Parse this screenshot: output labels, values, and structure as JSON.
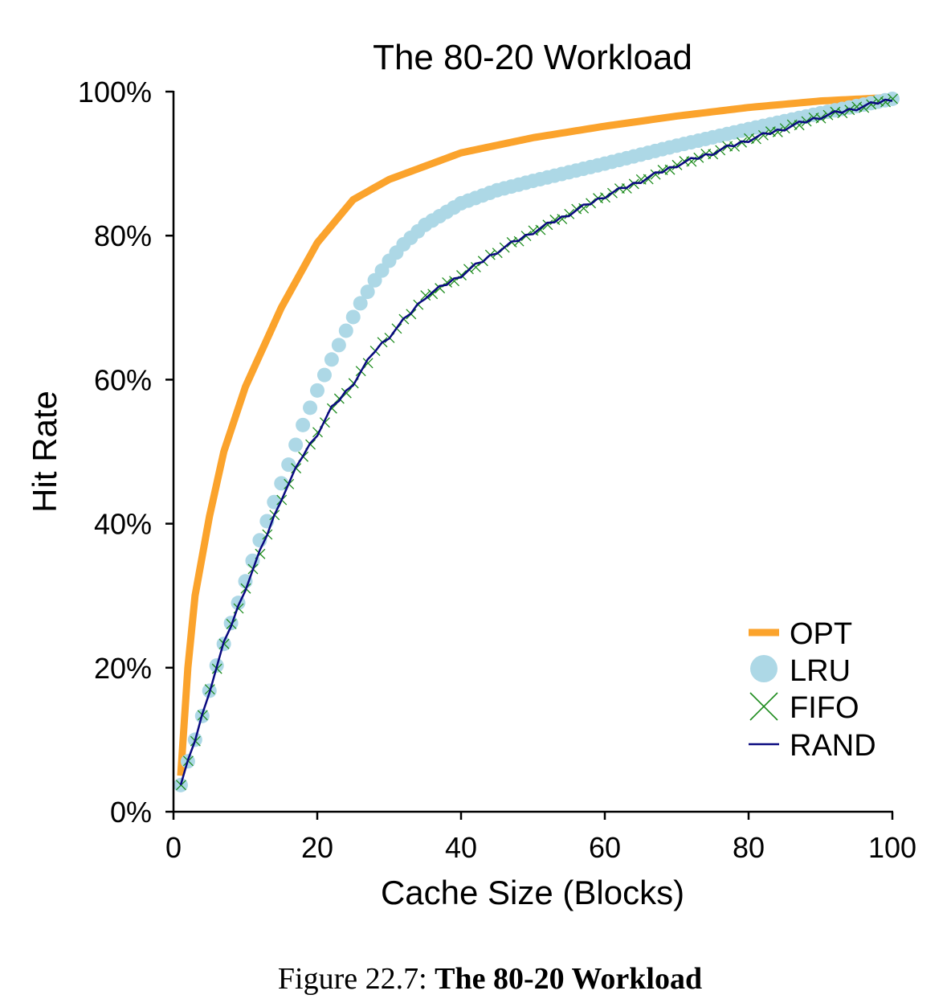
{
  "chart_data": {
    "type": "line",
    "title": "The 80-20 Workload",
    "xlabel": "Cache Size (Blocks)",
    "ylabel": "Hit Rate",
    "xlim": [
      0,
      100
    ],
    "ylim": [
      0,
      100
    ],
    "xticks": [
      0,
      20,
      40,
      60,
      80,
      100
    ],
    "xtick_labels": [
      "0",
      "20",
      "40",
      "60",
      "80",
      "100"
    ],
    "yticks": [
      0,
      20,
      40,
      60,
      80,
      100
    ],
    "ytick_labels": [
      "0%",
      "20%",
      "40%",
      "60%",
      "80%",
      "100%"
    ],
    "grid": false,
    "legend_position": "bottom-right",
    "x_sampling": "integer cache sizes 1-100, interpolated between anchor points",
    "series": [
      {
        "name": "OPT",
        "style": "thick-line",
        "color": "#FBA32C",
        "x": [
          1,
          2,
          3,
          5,
          7,
          10,
          15,
          20,
          25,
          30,
          40,
          50,
          60,
          70,
          80,
          90,
          100
        ],
        "y": [
          5,
          20,
          30,
          41,
          50,
          59,
          70,
          79,
          85,
          87.8,
          91.5,
          93.6,
          95.2,
          96.6,
          97.8,
          98.7,
          99.2
        ]
      },
      {
        "name": "LRU",
        "style": "circle-marker",
        "color": "#ADD8E6",
        "x": [
          1,
          2,
          3,
          4,
          5,
          6,
          7,
          8,
          9,
          10,
          12,
          14,
          16,
          18,
          20,
          22,
          24,
          26,
          28,
          30,
          32,
          35,
          40,
          45,
          50,
          60,
          70,
          80,
          90,
          100
        ],
        "y": [
          3.7,
          7,
          10,
          13.3,
          16.8,
          20.3,
          23.3,
          26.2,
          29,
          32,
          37.7,
          43,
          48.2,
          53.7,
          58.5,
          62.8,
          66.8,
          70.6,
          73.8,
          76.5,
          78.8,
          81.5,
          84.5,
          86.3,
          87.6,
          90,
          92.5,
          94.8,
          97,
          99
        ]
      },
      {
        "name": "FIFO",
        "style": "x-marker",
        "color": "#1E8C1E",
        "x": [
          1,
          3,
          5,
          7,
          10,
          12,
          15,
          18,
          20,
          22,
          25,
          28,
          30,
          35,
          40,
          45,
          50,
          55,
          60,
          65,
          70,
          75,
          80,
          85,
          90,
          95,
          100
        ],
        "y": [
          3.7,
          10,
          16.8,
          23.3,
          31,
          36,
          43.5,
          49.5,
          52.5,
          56,
          59.5,
          64,
          66,
          71.5,
          74.5,
          77.8,
          80.5,
          83,
          85.5,
          87.6,
          89.8,
          91.5,
          93.3,
          94.9,
          96.5,
          97.7,
          99
        ]
      },
      {
        "name": "RAND",
        "style": "thin-line",
        "color": "#0A0A80",
        "x": [
          1,
          3,
          5,
          7,
          10,
          12,
          15,
          18,
          20,
          22,
          25,
          28,
          30,
          35,
          40,
          45,
          50,
          55,
          60,
          65,
          70,
          75,
          80,
          85,
          90,
          95,
          100
        ],
        "y": [
          3.7,
          10,
          16.8,
          23.3,
          31,
          36,
          43.5,
          49.5,
          52.5,
          56,
          59.5,
          64,
          66,
          71.5,
          74.5,
          77.8,
          80.5,
          83,
          85.5,
          87.6,
          89.8,
          91.5,
          93.3,
          94.9,
          96.5,
          97.7,
          99
        ]
      }
    ]
  },
  "caption": {
    "prefix": "Figure 22.7:",
    "title": "The 80-20 Workload"
  }
}
